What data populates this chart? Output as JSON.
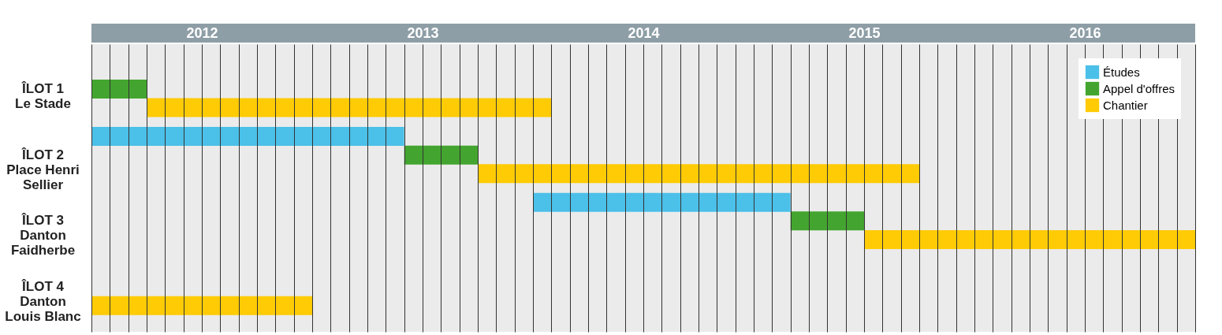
{
  "chart_data": {
    "type": "bar",
    "orientation": "horizontal",
    "legend": "top right",
    "grid": "x",
    "categories": [
      "ÎLOT 1\nLe Stade",
      "ÎLOT 2\nPlace Henri\nSellier",
      "ÎLOT 3\nDanton\nFaidherbe",
      "ÎLOT 4\nDanton\nLouis Blanc"
    ],
    "series": [
      {
        "name": "Études",
        "color": "#4bc0e8",
        "base": [
          null,
          2012,
          2014,
          null
        ],
        "values": [
          null,
          1.4167,
          1.1667,
          null
        ]
      },
      {
        "name": "Appel d'offres",
        "color": "#43a52f",
        "base": [
          2012,
          2013.4167,
          2015.1667,
          null
        ],
        "values": [
          0.25,
          0.3333,
          0.3333,
          null
        ]
      },
      {
        "name": "Chantier",
        "color": "#ffcb05",
        "base": [
          2012.25,
          2013.75,
          2015.5,
          2012
        ],
        "values": [
          1.8333,
          2.0,
          1.5,
          1.0
        ]
      }
    ],
    "xlim": [
      2012,
      2017
    ],
    "xticks": [
      {
        "value": 2012,
        "label": null
      },
      {
        "value": 2012.0833,
        "label": null
      },
      {
        "value": 2012.1667,
        "label": null
      },
      {
        "value": 2012.25,
        "label": null
      },
      {
        "value": 2012.3333,
        "label": null
      },
      {
        "value": 2012.4167,
        "label": null
      },
      {
        "value": 2012.5,
        "label": "2012"
      },
      {
        "value": 2012.5833,
        "label": null
      },
      {
        "value": 2012.6667,
        "label": null
      },
      {
        "value": 2012.75,
        "label": null
      },
      {
        "value": 2012.8333,
        "label": null
      },
      {
        "value": 2012.9167,
        "label": null
      },
      {
        "value": 2013,
        "label": null
      },
      {
        "value": 2013.0833,
        "label": null
      },
      {
        "value": 2013.1667,
        "label": null
      },
      {
        "value": 2013.25,
        "label": null
      },
      {
        "value": 2013.3333,
        "label": null
      },
      {
        "value": 2013.4167,
        "label": null
      },
      {
        "value": 2013.5,
        "label": "2013"
      },
      {
        "value": 2013.5833,
        "label": null
      },
      {
        "value": 2013.6667,
        "label": null
      },
      {
        "value": 2013.75,
        "label": null
      },
      {
        "value": 2013.8333,
        "label": null
      },
      {
        "value": 2013.9167,
        "label": null
      },
      {
        "value": 2014,
        "label": null
      },
      {
        "value": 2014.0833,
        "label": null
      },
      {
        "value": 2014.1667,
        "label": null
      },
      {
        "value": 2014.25,
        "label": null
      },
      {
        "value": 2014.3333,
        "label": null
      },
      {
        "value": 2014.4167,
        "label": null
      },
      {
        "value": 2014.5,
        "label": "2014"
      },
      {
        "value": 2014.5833,
        "label": null
      },
      {
        "value": 2014.6667,
        "label": null
      },
      {
        "value": 2014.75,
        "label": null
      },
      {
        "value": 2014.8333,
        "label": null
      },
      {
        "value": 2014.9167,
        "label": null
      },
      {
        "value": 2015,
        "label": null
      },
      {
        "value": 2015.0833,
        "label": null
      },
      {
        "value": 2015.1667,
        "label": null
      },
      {
        "value": 2015.25,
        "label": null
      },
      {
        "value": 2015.3333,
        "label": null
      },
      {
        "value": 2015.4167,
        "label": null
      },
      {
        "value": 2015.5,
        "label": "2015"
      },
      {
        "value": 2015.5833,
        "label": null
      },
      {
        "value": 2015.6667,
        "label": null
      },
      {
        "value": 2015.75,
        "label": null
      },
      {
        "value": 2015.8333,
        "label": null
      },
      {
        "value": 2015.9167,
        "label": null
      },
      {
        "value": 2016,
        "label": null
      },
      {
        "value": 2016.0833,
        "label": null
      },
      {
        "value": 2016.1667,
        "label": null
      },
      {
        "value": 2016.25,
        "label": null
      },
      {
        "value": 2016.3333,
        "label": null
      },
      {
        "value": 2016.4167,
        "label": null
      },
      {
        "value": 2016.5,
        "label": "2016"
      },
      {
        "value": 2016.5833,
        "label": null
      },
      {
        "value": 2016.6667,
        "label": null
      },
      {
        "value": 2016.75,
        "label": null
      },
      {
        "value": 2016.8333,
        "label": null
      },
      {
        "value": 2016.9167,
        "label": null
      },
      {
        "value": 2017,
        "label": null
      }
    ]
  }
}
